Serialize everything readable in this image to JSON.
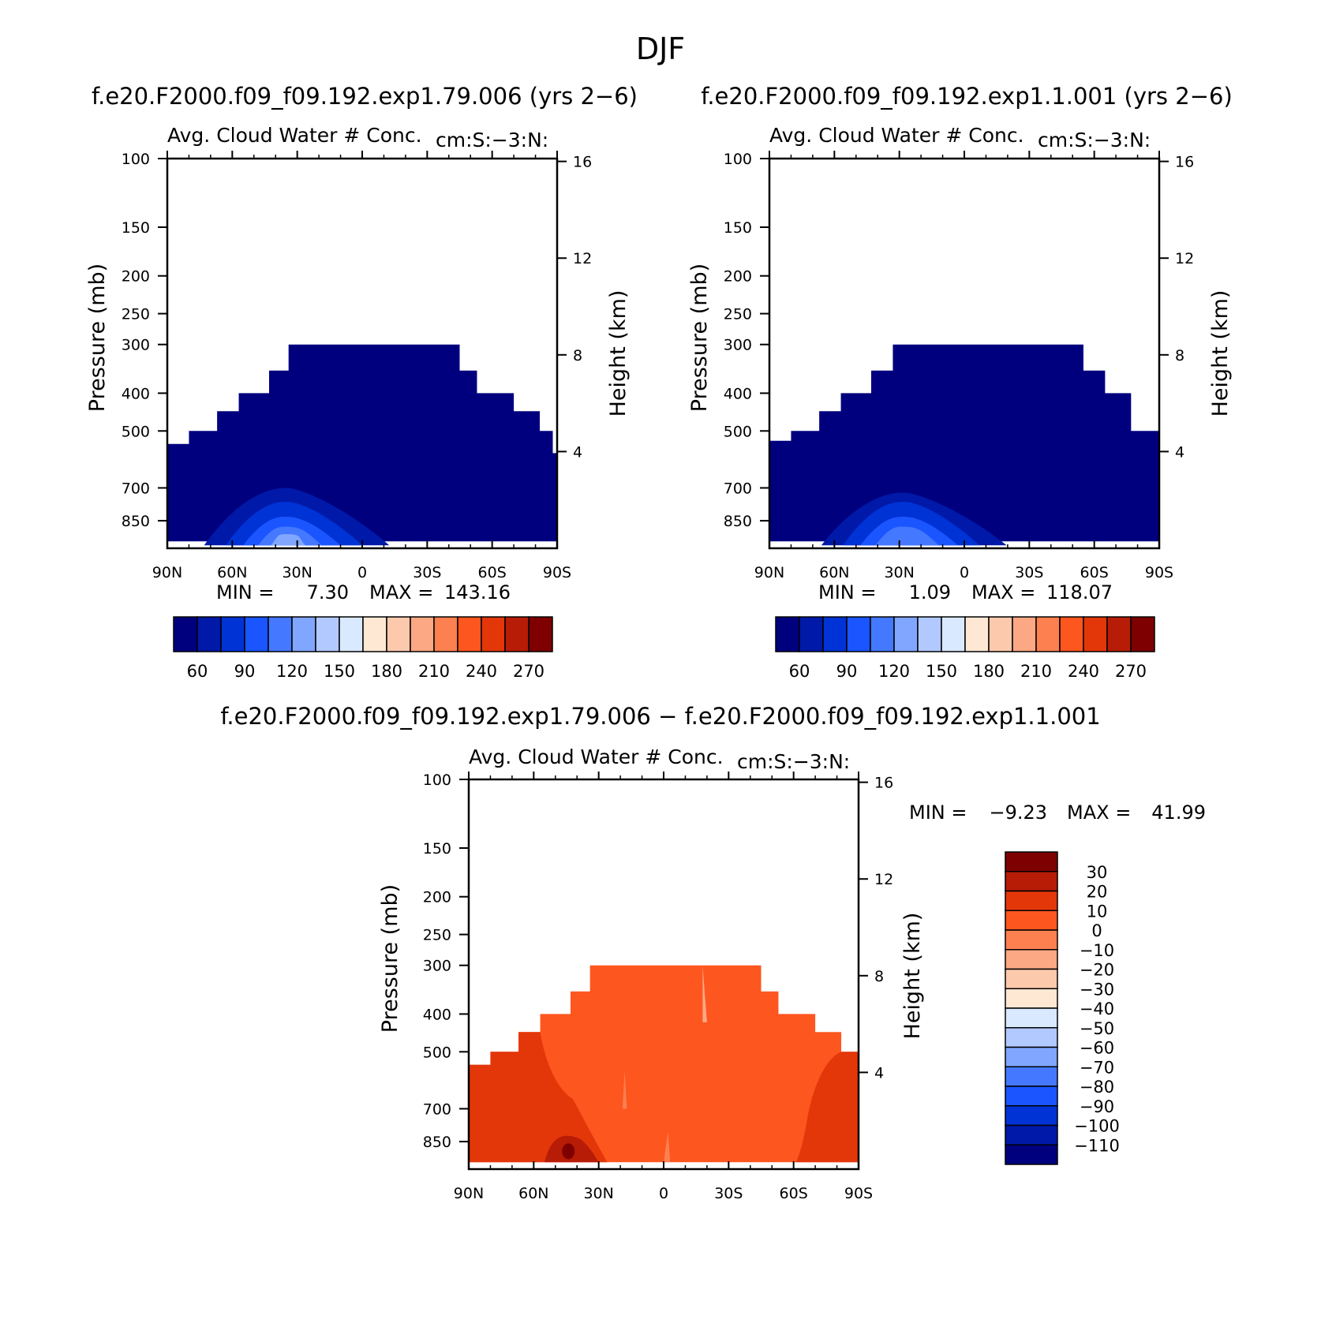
{
  "figure": {
    "title": "DJF"
  },
  "colors": {
    "blue_red_16": [
      "#00007f",
      "#0019a8",
      "#0033d6",
      "#1a55ff",
      "#4479ff",
      "#80a6ff",
      "#b2c9ff",
      "#d9e9ff",
      "#fee8d4",
      "#fdc9ac",
      "#fca885",
      "#fd8050",
      "#fe561f",
      "#e3370a",
      "#b71c06",
      "#7f0000"
    ],
    "diff_16": [
      "#7f0000",
      "#b71c06",
      "#e3370a",
      "#fe561f",
      "#fd8050",
      "#fca885",
      "#fdc9ac",
      "#fee8d4",
      "#d9e9ff",
      "#b2c9ff",
      "#80a6ff",
      "#4479ff",
      "#1a55ff",
      "#0033d6",
      "#0019a8",
      "#00007f"
    ]
  },
  "panels": [
    {
      "case_title": "f.e20.F2000.f09_f09.192.exp1.79.006 (yrs 2−6)",
      "field_title": "Avg. Cloud Water # Conc.",
      "units": "cm:S:−3:N:",
      "ylabel": "Pressure (mb)",
      "y2label": "Height (km)",
      "min_label": "MIN =",
      "min_value": "7.30",
      "max_label": "MAX =",
      "max_value": "143.16"
    },
    {
      "case_title": "f.e20.F2000.f09_f09.192.exp1.1.001 (yrs 2−6)",
      "field_title": "Avg. Cloud Water # Conc.",
      "units": "cm:S:−3:N:",
      "ylabel": "Pressure (mb)",
      "y2label": "Height (km)",
      "min_label": "MIN =",
      "min_value": "1.09",
      "max_label": "MAX =",
      "max_value": "118.07"
    },
    {
      "case_title": "f.e20.F2000.f09_f09.192.exp1.79.006 − f.e20.F2000.f09_f09.192.exp1.1.001",
      "field_title": "Avg. Cloud Water # Conc.",
      "units": "cm:S:−3:N:",
      "ylabel": "Pressure (mb)",
      "y2label": "Height (km)",
      "min_label": "MIN =",
      "min_value": "−9.23",
      "max_label": "MAX =",
      "max_value": "41.99"
    }
  ],
  "chart_data": [
    {
      "type": "heatmap",
      "panel": "top-left",
      "title": "Avg. Cloud Water # Conc.",
      "xlabel": "",
      "ylabel": "Pressure (mb)",
      "y2label": "Height (km)",
      "x_tick_labels": [
        "90N",
        "60N",
        "30N",
        "0",
        "30S",
        "60S",
        "90S"
      ],
      "x_ticks_deg": [
        90,
        60,
        30,
        0,
        -30,
        -60,
        -90
      ],
      "y_ticks_mb": [
        100,
        150,
        200,
        250,
        300,
        400,
        500,
        700,
        850
      ],
      "y_log_scale": true,
      "ylim_mb": [
        100,
        1000
      ],
      "y2_ticks_km": [
        4,
        8,
        12,
        16
      ],
      "colorbar_labels": [
        "60",
        "90",
        "120",
        "150",
        "180",
        "210",
        "240",
        "270"
      ],
      "levels": [
        45,
        60,
        75,
        90,
        105,
        120,
        135,
        150,
        165,
        180,
        195,
        210,
        225,
        240,
        255,
        270
      ],
      "min": 7.3,
      "max": 143.16,
      "cloud_top_steps": [
        {
          "lat_from": 90,
          "lat_to": 80,
          "p": 540
        },
        {
          "lat_from": 80,
          "lat_to": 67,
          "p": 500
        },
        {
          "lat_from": 67,
          "lat_to": 57,
          "p": 445
        },
        {
          "lat_from": 57,
          "lat_to": 43,
          "p": 400
        },
        {
          "lat_from": 43,
          "lat_to": 34,
          "p": 350
        },
        {
          "lat_from": 34,
          "lat_to": -45,
          "p": 300
        },
        {
          "lat_from": -45,
          "lat_to": -53,
          "p": 350
        },
        {
          "lat_from": -53,
          "lat_to": -70,
          "p": 400
        },
        {
          "lat_from": -70,
          "lat_to": -82,
          "p": 445
        },
        {
          "lat_from": -82,
          "lat_to": -88,
          "p": 500
        },
        {
          "lat_from": -88,
          "lat_to": -90,
          "p": 570
        }
      ],
      "enhanced_region": {
        "lat_center": 35,
        "p_top": 700,
        "value_peak": 143.16
      }
    },
    {
      "type": "heatmap",
      "panel": "top-right",
      "title": "Avg. Cloud Water # Conc.",
      "xlabel": "",
      "ylabel": "Pressure (mb)",
      "y2label": "Height (km)",
      "x_tick_labels": [
        "90N",
        "60N",
        "30N",
        "0",
        "30S",
        "60S",
        "90S"
      ],
      "x_ticks_deg": [
        90,
        60,
        30,
        0,
        -30,
        -60,
        -90
      ],
      "y_ticks_mb": [
        100,
        150,
        200,
        250,
        300,
        400,
        500,
        700,
        850
      ],
      "y_log_scale": true,
      "ylim_mb": [
        100,
        1000
      ],
      "y2_ticks_km": [
        4,
        8,
        12,
        16
      ],
      "colorbar_labels": [
        "60",
        "90",
        "120",
        "150",
        "180",
        "210",
        "240",
        "270"
      ],
      "levels": [
        45,
        60,
        75,
        90,
        105,
        120,
        135,
        150,
        165,
        180,
        195,
        210,
        225,
        240,
        255,
        270
      ],
      "min": 1.09,
      "max": 118.07,
      "cloud_top_steps": [
        {
          "lat_from": 90,
          "lat_to": 80,
          "p": 530
        },
        {
          "lat_from": 80,
          "lat_to": 67,
          "p": 500
        },
        {
          "lat_from": 67,
          "lat_to": 57,
          "p": 445
        },
        {
          "lat_from": 57,
          "lat_to": 43,
          "p": 400
        },
        {
          "lat_from": 43,
          "lat_to": 33,
          "p": 350
        },
        {
          "lat_from": 33,
          "lat_to": -55,
          "p": 300
        },
        {
          "lat_from": -55,
          "lat_to": -65,
          "p": 350
        },
        {
          "lat_from": -65,
          "lat_to": -77,
          "p": 400
        },
        {
          "lat_from": -77,
          "lat_to": -90,
          "p": 500
        }
      ],
      "enhanced_region": {
        "lat_center": 28,
        "p_top": 720,
        "value_peak": 118.07
      }
    },
    {
      "type": "heatmap",
      "panel": "bottom",
      "title": "Avg. Cloud Water # Conc.",
      "xlabel": "",
      "ylabel": "Pressure (mb)",
      "y2label": "Height (km)",
      "x_tick_labels": [
        "90N",
        "60N",
        "30N",
        "0",
        "30S",
        "60S",
        "90S"
      ],
      "x_ticks_deg": [
        90,
        60,
        30,
        0,
        -30,
        -60,
        -90
      ],
      "y_ticks_mb": [
        100,
        150,
        200,
        250,
        300,
        400,
        500,
        700,
        850
      ],
      "y_log_scale": true,
      "ylim_mb": [
        100,
        1000
      ],
      "y2_ticks_km": [
        4,
        8,
        12,
        16
      ],
      "colorbar_labels": [
        "30",
        "20",
        "10",
        "0",
        "−10",
        "−20",
        "−30",
        "−40",
        "−50",
        "−60",
        "−70",
        "−80",
        "−90",
        "−100",
        "−110"
      ],
      "levels": [
        30,
        20,
        10,
        0,
        -10,
        -20,
        -30,
        -40,
        -50,
        -60,
        -70,
        -80,
        -90,
        -100,
        -110
      ],
      "min": -9.23,
      "max": 41.99,
      "cloud_top_steps": [
        {
          "lat_from": 90,
          "lat_to": 80,
          "p": 540
        },
        {
          "lat_from": 80,
          "lat_to": 67,
          "p": 500
        },
        {
          "lat_from": 67,
          "lat_to": 57,
          "p": 445
        },
        {
          "lat_from": 57,
          "lat_to": 43,
          "p": 400
        },
        {
          "lat_from": 43,
          "lat_to": 34,
          "p": 350
        },
        {
          "lat_from": 34,
          "lat_to": -45,
          "p": 300
        },
        {
          "lat_from": -45,
          "lat_to": -53,
          "p": 350
        },
        {
          "lat_from": -53,
          "lat_to": -70,
          "p": 400
        },
        {
          "lat_from": -70,
          "lat_to": -82,
          "p": 445
        },
        {
          "lat_from": -82,
          "lat_to": -90,
          "p": 500
        }
      ],
      "dominant_value_band": [
        0,
        10
      ]
    }
  ]
}
